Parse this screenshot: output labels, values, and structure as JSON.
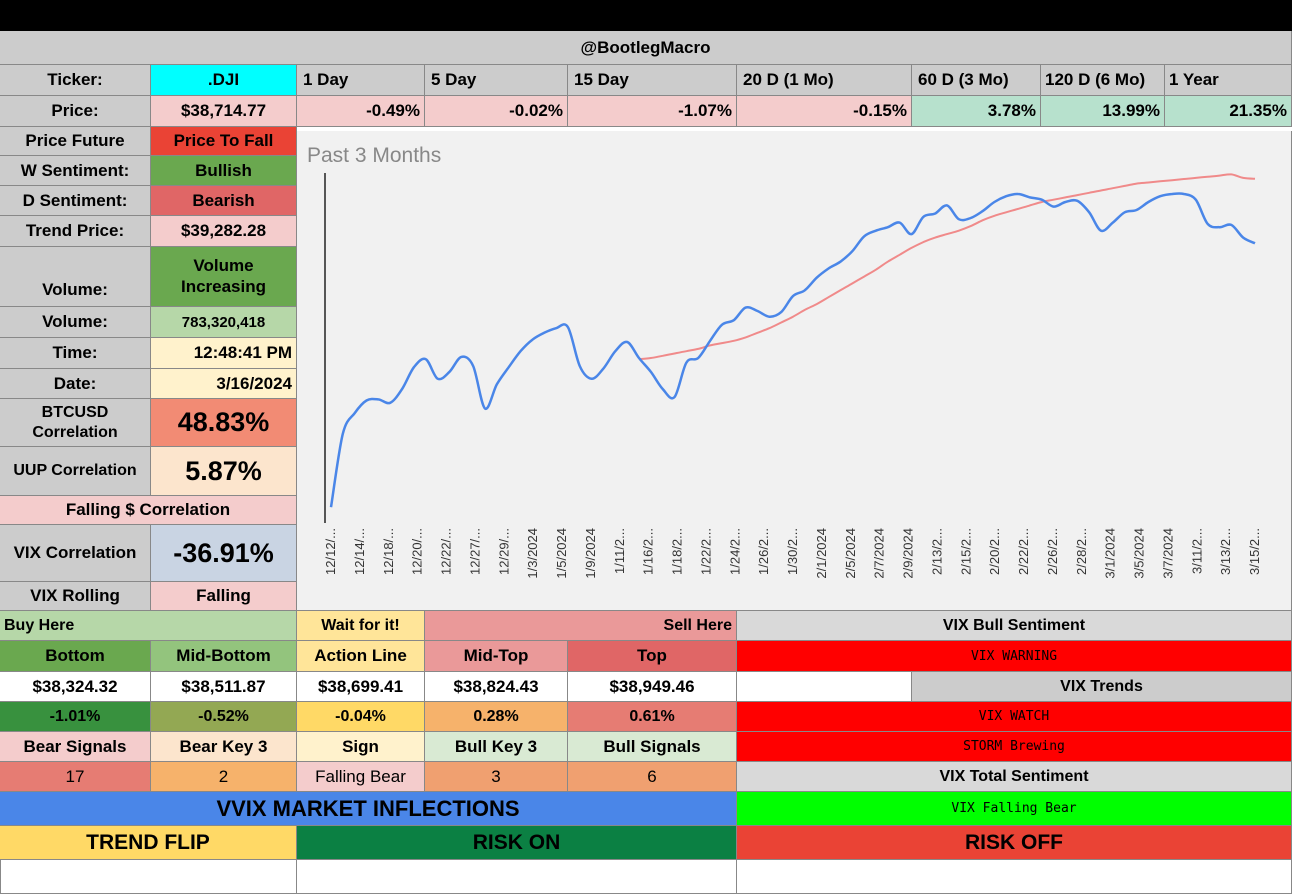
{
  "header": {
    "handle": "@BootlegMacro"
  },
  "ticker_row": {
    "label": "Ticker:",
    "value": ".DJI",
    "periods": [
      "1 Day",
      "5 Day",
      "15 Day",
      "20 D (1 Mo)",
      "60 D (3 Mo)",
      "120 D (6 Mo)",
      "1 Year"
    ]
  },
  "price_row": {
    "label": "Price:",
    "value": "$38,714.77",
    "changes": [
      "-0.49%",
      "-0.02%",
      "-1.07%",
      "-0.15%",
      "3.78%",
      "13.99%",
      "21.35%"
    ]
  },
  "stats": {
    "price_future": {
      "label": "Price Future",
      "value": "Price To Fall"
    },
    "w_sentiment": {
      "label": "W Sentiment:",
      "value": "Bullish"
    },
    "d_sentiment": {
      "label": "D Sentiment:",
      "value": "Bearish"
    },
    "trend_price": {
      "label": "Trend Price:",
      "value": "$39,282.28"
    },
    "volume_trend": {
      "label": "Volume:",
      "value": "Volume Increasing"
    },
    "volume": {
      "label": "Volume:",
      "value": "783,320,418"
    },
    "time": {
      "label": "Time:",
      "value": "12:48:41 PM"
    },
    "date": {
      "label": "Date:",
      "value": "3/16/2024"
    },
    "btc_corr": {
      "label": "BTCUSD Correlation",
      "value": "48.83%"
    },
    "uup_corr": {
      "label": "UUP Correlation",
      "value": "5.87%"
    },
    "falling_corr": {
      "label": "Falling $ Correlation"
    },
    "vix_corr": {
      "label": "VIX Correlation",
      "value": "-36.91%"
    },
    "vix_rolling": {
      "label": "VIX Rolling",
      "value": "Falling"
    }
  },
  "levels": {
    "buy_here": "Buy Here",
    "wait": "Wait for it!",
    "sell_here": "Sell Here",
    "headers": [
      "Bottom",
      "Mid-Bottom",
      "Action Line",
      "Mid-Top",
      "Top"
    ],
    "prices": [
      "$38,324.32",
      "$38,511.87",
      "$38,699.41",
      "$38,824.43",
      "$38,949.46"
    ],
    "pcts": [
      "-1.01%",
      "-0.52%",
      "-0.04%",
      "0.28%",
      "0.61%"
    ]
  },
  "signals": {
    "headers": [
      "Bear Signals",
      "Bear Key 3",
      "Sign",
      "Bull Key 3",
      "Bull Signals"
    ],
    "values": [
      "17",
      "2",
      "Falling Bear",
      "3",
      "6"
    ]
  },
  "vix_panel": {
    "bull_sentiment_label": "VIX Bull Sentiment",
    "warning": "VIX WARNING",
    "trends_label": "VIX Trends",
    "watch": "VIX WATCH",
    "storm": "STORM Brewing",
    "total_label": "VIX Total Sentiment",
    "total_value": "VIX Falling Bear"
  },
  "inflections": {
    "title": "VVIX MARKET INFLECTIONS",
    "trend_flip": "TREND FLIP",
    "risk_on": "RISK ON",
    "risk_off": "RISK OFF"
  },
  "colors": {
    "cyan": "#00ffff",
    "red": "#ff0000",
    "green_bright": "#00ff00",
    "blue_banner": "#4a86e8",
    "price_line": "#4a86e8",
    "trend_line": "#f08a8a"
  },
  "chart_data": {
    "type": "line",
    "title": "Past 3 Months",
    "x_ticks": [
      "12/12/...",
      "12/14/...",
      "12/18/...",
      "12/20/...",
      "12/22/...",
      "12/27/...",
      "12/29/...",
      "1/3/2024",
      "1/5/2024",
      "1/9/2024",
      "1/11/2...",
      "1/16/2...",
      "1/18/2...",
      "1/22/2...",
      "1/24/2...",
      "1/26/2...",
      "1/30/2...",
      "2/1/2024",
      "2/5/2024",
      "2/7/2024",
      "2/9/2024",
      "2/13/2...",
      "2/15/2...",
      "2/20/2...",
      "2/22/2...",
      "2/26/2...",
      "2/28/2...",
      "3/1/2024",
      "3/5/2024",
      "3/7/2024",
      "3/11/2...",
      "3/13/2...",
      "3/15/2..."
    ],
    "series": [
      {
        "values": [
          36420,
          37060,
          37240,
          37350,
          37360,
          37330,
          37450,
          37640,
          37710,
          37540,
          37600,
          37730,
          37650,
          37280,
          37490,
          37640,
          37780,
          37880,
          37940,
          37980,
          37990,
          37650,
          37540,
          37630,
          37780,
          37860,
          37720,
          37600,
          37450,
          37380,
          37680,
          37720,
          37870,
          38010,
          38050,
          38160,
          38130,
          38080,
          38120,
          38260,
          38310,
          38420,
          38500,
          38560,
          38650,
          38780,
          38830,
          38860,
          38900,
          38800,
          38950,
          38980,
          39050,
          38930,
          38940,
          39000,
          39080,
          39130,
          39150,
          39120,
          39100,
          39040,
          39080,
          39090,
          38990,
          38830,
          38900,
          38990,
          39010,
          39080,
          39130,
          39150,
          39150,
          39100,
          38890,
          38860,
          38880,
          38770,
          38720
        ]
      },
      {
        "values": [
          37710,
          37720,
          37740,
          37760,
          37780,
          37800,
          37830,
          37850,
          37870,
          37900,
          37940,
          37980,
          38030,
          38080,
          38140,
          38190,
          38250,
          38310,
          38370,
          38430,
          38490,
          38560,
          38620,
          38680,
          38730,
          38770,
          38800,
          38830,
          38870,
          38920,
          38960,
          38990,
          39020,
          39050,
          39080,
          39100,
          39120,
          39140,
          39160,
          39180,
          39200,
          39220,
          39240,
          39250,
          39260,
          39270,
          39280,
          39290,
          39300,
          39310,
          39320,
          39290,
          39282
        ]
      }
    ],
    "ylim": [
      36300,
      39350
    ],
    "grid": false
  }
}
